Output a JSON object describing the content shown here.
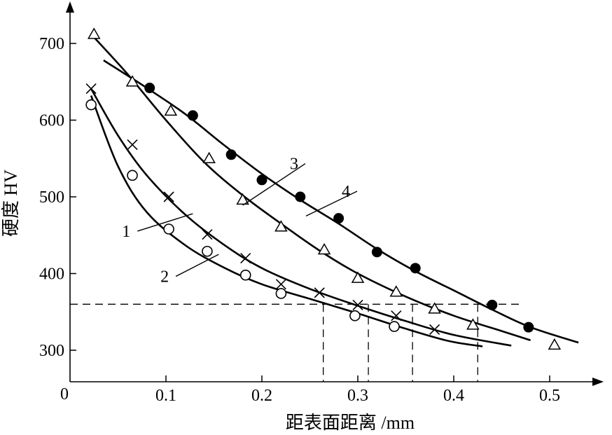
{
  "chart_data": {
    "type": "scatter",
    "xlabel": "距表面距离 /mm",
    "ylabel": "硬度  HV",
    "origin_label": "0",
    "x_ticks": [
      {
        "value": 0.1,
        "label": "0.1"
      },
      {
        "value": 0.2,
        "label": "0.2"
      },
      {
        "value": 0.3,
        "label": "0.3"
      },
      {
        "value": 0.4,
        "label": "0.4"
      },
      {
        "value": 0.5,
        "label": "0.5"
      }
    ],
    "y_ticks": [
      {
        "value": 300,
        "label": "300"
      },
      {
        "value": 400,
        "label": "400"
      },
      {
        "value": 500,
        "label": "500"
      },
      {
        "value": 600,
        "label": "600"
      },
      {
        "value": 700,
        "label": "700"
      }
    ],
    "xlim": [
      0,
      0.56
    ],
    "ylim": [
      260,
      750
    ],
    "grid": false,
    "reference": {
      "hardness": 360,
      "depths": [
        0.264,
        0.311,
        0.357,
        0.425
      ]
    },
    "series": [
      {
        "label": "1",
        "marker": "circle-open",
        "points": [
          [
            0.022,
            620
          ],
          [
            0.065,
            528
          ],
          [
            0.103,
            458
          ],
          [
            0.143,
            429
          ],
          [
            0.183,
            398
          ],
          [
            0.22,
            374
          ],
          [
            0.297,
            345
          ],
          [
            0.338,
            331
          ]
        ],
        "curve": [
          [
            0.022,
            632
          ],
          [
            0.05,
            540
          ],
          [
            0.08,
            480
          ],
          [
            0.12,
            437
          ],
          [
            0.16,
            408
          ],
          [
            0.2,
            386
          ],
          [
            0.25,
            367
          ],
          [
            0.3,
            348
          ],
          [
            0.35,
            328
          ],
          [
            0.395,
            312
          ],
          [
            0.43,
            305
          ]
        ]
      },
      {
        "label": "2",
        "marker": "cross",
        "points": [
          [
            0.022,
            641
          ],
          [
            0.065,
            568
          ],
          [
            0.103,
            500
          ],
          [
            0.143,
            451
          ],
          [
            0.183,
            420
          ],
          [
            0.22,
            386
          ],
          [
            0.26,
            375
          ],
          [
            0.3,
            359
          ],
          [
            0.34,
            345
          ],
          [
            0.38,
            327
          ]
        ],
        "curve": [
          [
            0.022,
            641
          ],
          [
            0.05,
            580
          ],
          [
            0.08,
            528
          ],
          [
            0.12,
            477
          ],
          [
            0.16,
            438
          ],
          [
            0.2,
            407
          ],
          [
            0.25,
            380
          ],
          [
            0.3,
            358
          ],
          [
            0.35,
            338
          ],
          [
            0.4,
            320
          ],
          [
            0.46,
            306
          ]
        ]
      },
      {
        "label": "3",
        "marker": "triangle-open",
        "points": [
          [
            0.025,
            712
          ],
          [
            0.065,
            650
          ],
          [
            0.105,
            612
          ],
          [
            0.145,
            550
          ],
          [
            0.18,
            496
          ],
          [
            0.22,
            461
          ],
          [
            0.265,
            431
          ],
          [
            0.3,
            394
          ],
          [
            0.34,
            376
          ],
          [
            0.38,
            354
          ],
          [
            0.42,
            333
          ],
          [
            0.505,
            307
          ]
        ],
        "curve": [
          [
            0.025,
            708
          ],
          [
            0.06,
            660
          ],
          [
            0.1,
            600
          ],
          [
            0.14,
            545
          ],
          [
            0.18,
            502
          ],
          [
            0.22,
            465
          ],
          [
            0.26,
            430
          ],
          [
            0.3,
            400
          ],
          [
            0.35,
            370
          ],
          [
            0.4,
            345
          ],
          [
            0.45,
            325
          ],
          [
            0.48,
            313
          ]
        ]
      },
      {
        "label": "4",
        "marker": "circle-filled",
        "points": [
          [
            0.083,
            642
          ],
          [
            0.128,
            606
          ],
          [
            0.168,
            555
          ],
          [
            0.2,
            522
          ],
          [
            0.24,
            500
          ],
          [
            0.28,
            472
          ],
          [
            0.32,
            428
          ],
          [
            0.36,
            407
          ],
          [
            0.44,
            359
          ],
          [
            0.478,
            330
          ]
        ],
        "curve": [
          [
            0.035,
            678
          ],
          [
            0.08,
            642
          ],
          [
            0.12,
            608
          ],
          [
            0.16,
            568
          ],
          [
            0.2,
            530
          ],
          [
            0.24,
            496
          ],
          [
            0.28,
            465
          ],
          [
            0.32,
            432
          ],
          [
            0.36,
            403
          ],
          [
            0.4,
            378
          ],
          [
            0.44,
            353
          ],
          [
            0.48,
            330
          ],
          [
            0.53,
            310
          ]
        ]
      }
    ],
    "curve_labels": [
      {
        "text": "1",
        "tx": 0.063,
        "ty": 448,
        "ax": 0.128,
        "ay": 478
      },
      {
        "text": "2",
        "tx": 0.103,
        "ty": 389,
        "ax": 0.155,
        "ay": 425
      },
      {
        "text": "3",
        "tx": 0.238,
        "ty": 536,
        "ax": 0.18,
        "ay": 489
      },
      {
        "text": "4",
        "tx": 0.292,
        "ty": 500,
        "ax": 0.246,
        "ay": 475
      }
    ]
  }
}
